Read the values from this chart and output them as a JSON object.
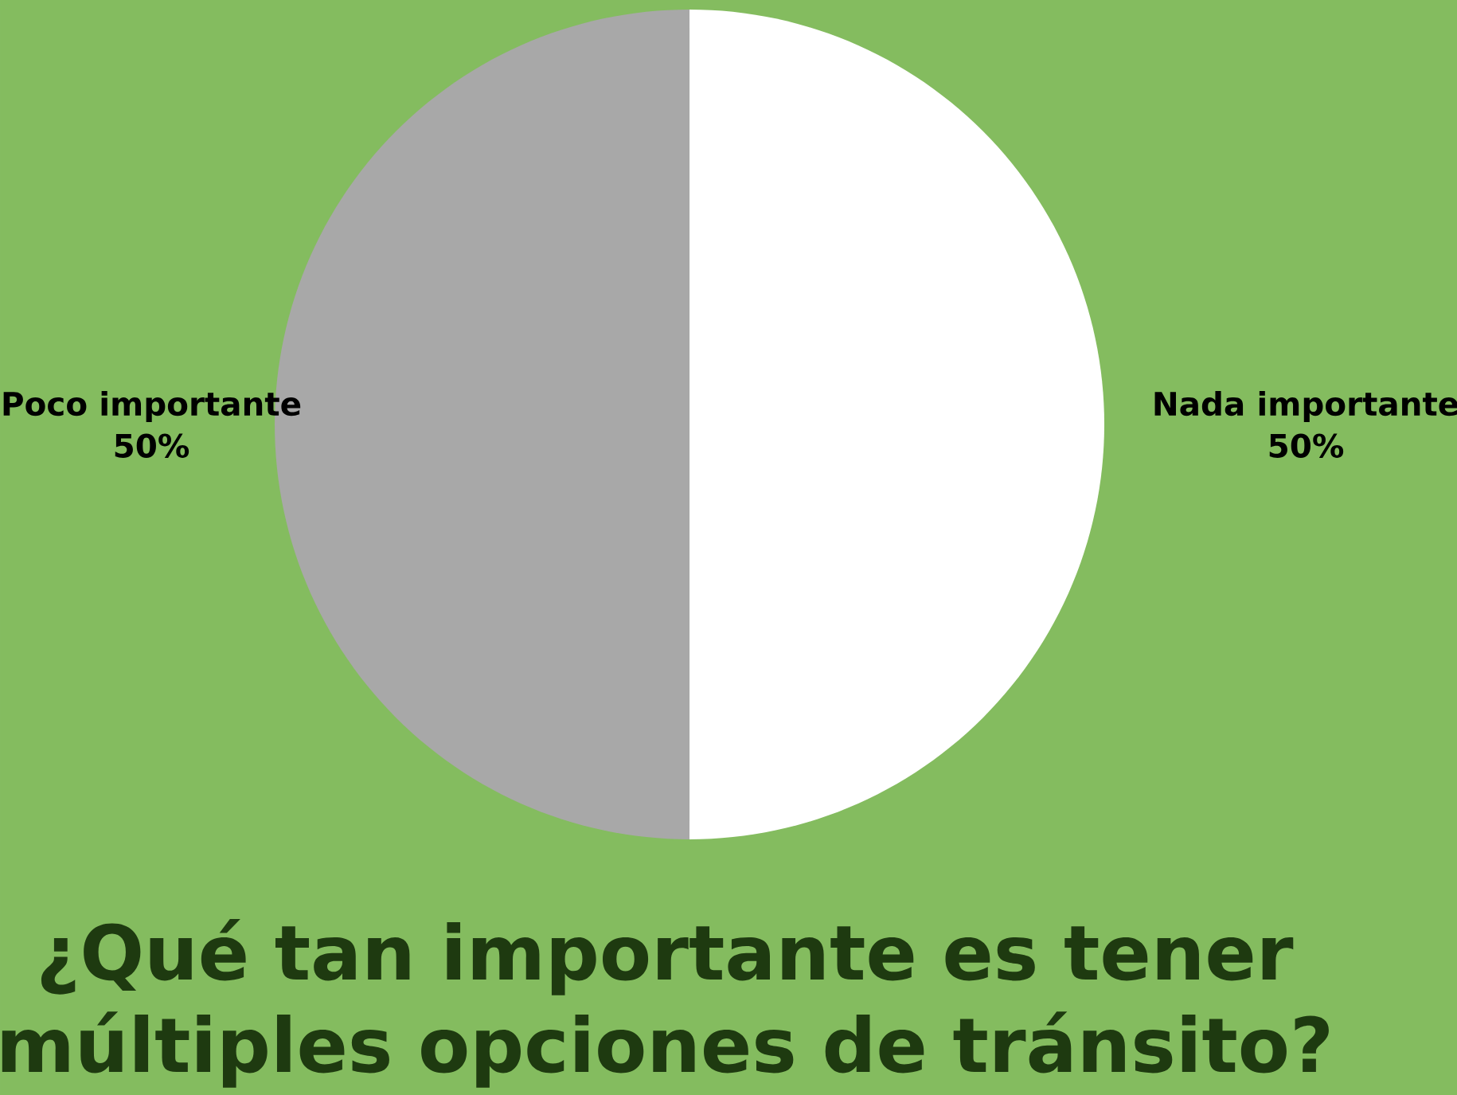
{
  "chart_data": {
    "type": "pie",
    "title": "¿Qué tan importante es tener múltiples opciones de tránsito?",
    "categories": [
      "Nada importante",
      "Poco importante"
    ],
    "values": [
      50,
      50
    ],
    "value_labels": [
      "50%",
      "50%"
    ],
    "colors": [
      "#ffffff",
      "#a8a8a8"
    ]
  }
}
